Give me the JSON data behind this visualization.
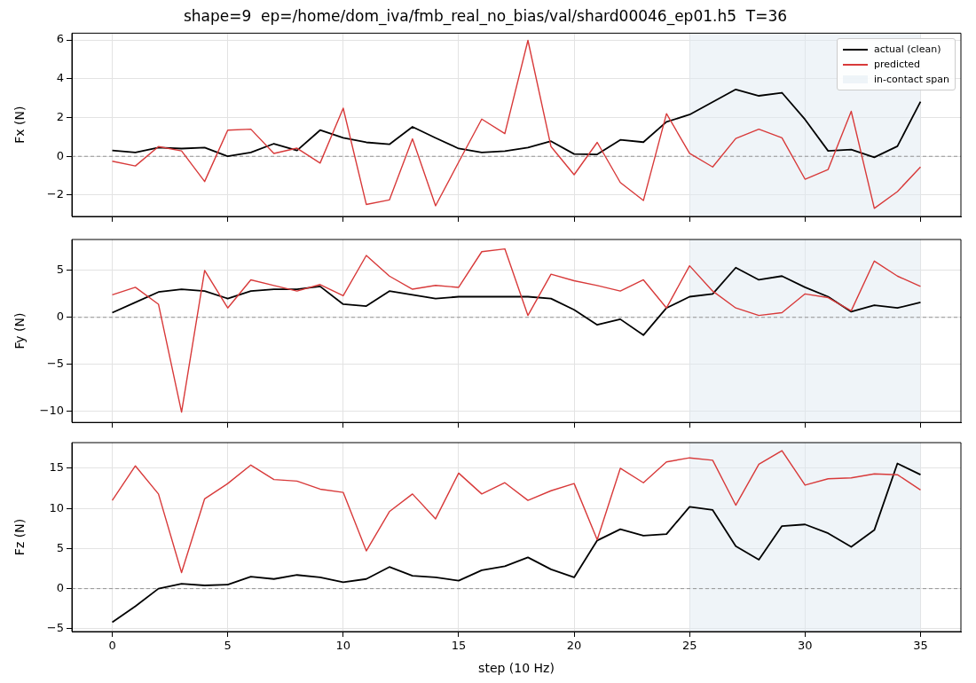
{
  "chart_data": [
    {
      "type": "line",
      "title": "shape=9  ep=/home/dom_iva/fmb_real_no_bias/val/shard00046_ep01.h5  T=36",
      "ylabel": "Fx (N)",
      "x": [
        0,
        1,
        2,
        3,
        4,
        5,
        6,
        7,
        8,
        9,
        10,
        11,
        12,
        13,
        14,
        15,
        16,
        17,
        18,
        19,
        20,
        21,
        22,
        23,
        24,
        25,
        26,
        27,
        28,
        29,
        30,
        31,
        32,
        33,
        34,
        35
      ],
      "series": [
        {
          "name": "actual (clean)",
          "color": "#000000",
          "values": [
            0.3,
            0.2,
            0.45,
            0.4,
            0.45,
            0.0,
            0.2,
            0.65,
            0.3,
            1.35,
            0.95,
            0.72,
            0.62,
            1.52,
            0.95,
            0.4,
            0.2,
            0.27,
            0.45,
            0.78,
            0.12,
            0.1,
            0.85,
            0.73,
            1.78,
            2.15,
            2.8,
            3.45,
            3.12,
            3.28,
            1.9,
            0.28,
            0.35,
            -0.05,
            0.52,
            2.82
          ]
        },
        {
          "name": "predicted",
          "color": "#d83a3a",
          "values": [
            -0.25,
            -0.5,
            0.5,
            0.28,
            -1.3,
            1.35,
            1.4,
            0.15,
            0.42,
            -0.35,
            2.48,
            -2.48,
            -2.25,
            0.9,
            -2.55,
            -0.3,
            1.92,
            1.17,
            5.98,
            0.5,
            -0.95,
            0.72,
            -1.35,
            -2.28,
            2.2,
            0.15,
            -0.55,
            0.92,
            1.4,
            0.95,
            -1.18,
            -0.68,
            2.32,
            -2.68,
            -1.82,
            -0.55
          ]
        }
      ],
      "xlim": [
        -1.75,
        36.75
      ],
      "xticks": [
        0,
        5,
        10,
        15,
        20,
        25,
        30,
        35
      ],
      "ylim": [
        -3.1,
        6.35
      ],
      "yticks": [
        -2,
        0,
        2,
        4,
        6
      ],
      "bands": [
        {
          "axis": "x",
          "from": 25,
          "to": 35,
          "label": "in-contact span",
          "color": "#dfe9f2"
        }
      ],
      "ref_lines": [
        {
          "axis": "y",
          "value": 0,
          "color": "#808080",
          "line_style": "dashed"
        }
      ],
      "grid": true,
      "legend": "top right",
      "tick_labels": "y"
    },
    {
      "type": "line",
      "ylabel": "Fy (N)",
      "x": [
        0,
        1,
        2,
        3,
        4,
        5,
        6,
        7,
        8,
        9,
        10,
        11,
        12,
        13,
        14,
        15,
        16,
        17,
        18,
        19,
        20,
        21,
        22,
        23,
        24,
        25,
        26,
        27,
        28,
        29,
        30,
        31,
        32,
        33,
        34,
        35
      ],
      "series": [
        {
          "color": "#000000",
          "values": [
            0.5,
            1.6,
            2.7,
            3.0,
            2.8,
            2.0,
            2.8,
            3.0,
            3.0,
            3.3,
            1.4,
            1.2,
            2.8,
            2.4,
            2.0,
            2.2,
            2.2,
            2.2,
            2.2,
            2.0,
            0.8,
            -0.8,
            -0.2,
            -1.9,
            1.0,
            2.2,
            2.5,
            5.3,
            4.0,
            4.4,
            3.2,
            2.2,
            0.6,
            1.3,
            1.0,
            1.6
          ]
        },
        {
          "color": "#d83a3a",
          "values": [
            2.4,
            3.2,
            1.4,
            -10.1,
            5.0,
            1.0,
            4.0,
            3.4,
            2.8,
            3.5,
            2.3,
            6.6,
            4.4,
            3.0,
            3.4,
            3.2,
            7.0,
            7.3,
            0.2,
            4.6,
            3.9,
            3.4,
            2.8,
            4.0,
            1.0,
            5.5,
            2.8,
            1.0,
            0.2,
            0.5,
            2.5,
            2.1,
            0.7,
            6.0,
            4.4,
            3.3
          ]
        }
      ],
      "xlim": [
        -1.75,
        36.75
      ],
      "xticks": [
        0,
        5,
        10,
        15,
        20,
        25,
        30,
        35
      ],
      "ylim": [
        -11.2,
        8.3
      ],
      "yticks": [
        -10,
        -5,
        0,
        5
      ],
      "bands": [
        {
          "axis": "x",
          "from": 25,
          "to": 35,
          "color": "#dfe9f2"
        }
      ],
      "ref_lines": [
        {
          "axis": "y",
          "value": 0,
          "color": "#808080",
          "line_style": "dashed"
        }
      ],
      "grid": true,
      "tick_labels": "y"
    },
    {
      "type": "line",
      "xlabel": "step (10 Hz)",
      "ylabel": "Fz (N)",
      "x": [
        0,
        1,
        2,
        3,
        4,
        5,
        6,
        7,
        8,
        9,
        10,
        11,
        12,
        13,
        14,
        15,
        16,
        17,
        18,
        19,
        20,
        21,
        22,
        23,
        24,
        25,
        26,
        27,
        28,
        29,
        30,
        31,
        32,
        33,
        34,
        35
      ],
      "series": [
        {
          "color": "#000000",
          "values": [
            -4.2,
            -2.2,
            0.0,
            0.6,
            0.4,
            0.5,
            1.5,
            1.2,
            1.7,
            1.4,
            0.8,
            1.2,
            2.7,
            1.6,
            1.4,
            1.0,
            2.3,
            2.8,
            3.9,
            2.4,
            1.4,
            6.0,
            7.4,
            6.6,
            6.8,
            10.2,
            9.8,
            5.3,
            3.6,
            7.8,
            8.0,
            6.9,
            5.2,
            7.3,
            15.6,
            14.2
          ]
        },
        {
          "color": "#d83a3a",
          "values": [
            11.0,
            15.3,
            11.8,
            2.0,
            11.2,
            13.1,
            15.4,
            13.6,
            13.4,
            12.4,
            12.0,
            4.7,
            9.6,
            11.8,
            8.7,
            14.4,
            11.8,
            13.2,
            11.0,
            12.2,
            13.1,
            6.1,
            15.0,
            13.2,
            15.8,
            16.3,
            16.0,
            10.4,
            15.5,
            17.2,
            12.9,
            13.7,
            13.8,
            14.3,
            14.2,
            12.3
          ]
        }
      ],
      "xlim": [
        -1.75,
        36.75
      ],
      "xticks": [
        0,
        5,
        10,
        15,
        20,
        25,
        30,
        35
      ],
      "ylim": [
        -5.35,
        18.2
      ],
      "yticks": [
        -5,
        0,
        5,
        10,
        15
      ],
      "bands": [
        {
          "axis": "x",
          "from": 25,
          "to": 35,
          "color": "#dfe9f2"
        }
      ],
      "ref_lines": [
        {
          "axis": "y",
          "value": 0,
          "color": "#808080",
          "line_style": "dashed"
        }
      ],
      "grid": true
    }
  ]
}
